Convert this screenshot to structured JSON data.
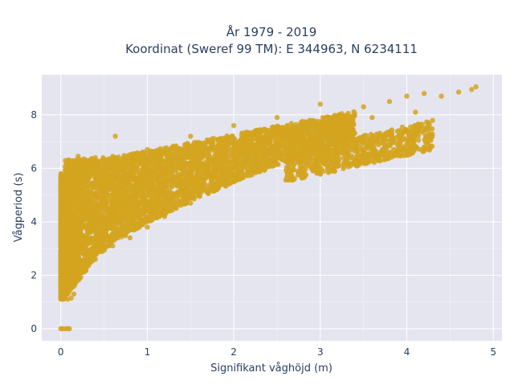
{
  "chart_data": {
    "type": "scatter",
    "title_line1": "År 1979 - 2019",
    "title_line2": "Koordinat (Sweref 99 TM): E 344963, N 6234111",
    "xlabel": "Signifikant våghöjd (m)",
    "ylabel": "Vågperiod (s)",
    "xlim": [
      -0.22,
      5.1
    ],
    "ylim": [
      -0.45,
      9.5
    ],
    "x_ticks": [
      0,
      1,
      2,
      3,
      4,
      5
    ],
    "x_tick_labels": [
      "0",
      "1",
      "2",
      "3",
      "4",
      "5"
    ],
    "y_ticks": [
      0,
      2,
      4,
      6,
      8
    ],
    "y_tick_labels": [
      "0",
      "2",
      "4",
      "6",
      "8"
    ],
    "grid": true,
    "marker_color": "#D4A520",
    "plot_background": "#E5E5F0",
    "series": [
      {
        "values_sample": [
          {
            "x": 0.0,
            "y": 0.0
          },
          {
            "x": 0.02,
            "y": 0.0
          },
          {
            "x": 0.05,
            "y": 0.0
          },
          {
            "x": 0.08,
            "y": 0.0
          },
          {
            "x": 0.1,
            "y": 0.0
          },
          {
            "x": 0.01,
            "y": 1.6
          },
          {
            "x": 0.02,
            "y": 1.4
          },
          {
            "x": 0.05,
            "y": 1.2
          },
          {
            "x": 0.08,
            "y": 1.1
          },
          {
            "x": 0.12,
            "y": 1.15
          },
          {
            "x": 0.15,
            "y": 1.3
          },
          {
            "x": 0.03,
            "y": 2.5
          },
          {
            "x": 0.04,
            "y": 3.5
          },
          {
            "x": 0.05,
            "y": 4.3
          },
          {
            "x": 0.06,
            "y": 5.3
          },
          {
            "x": 0.1,
            "y": 5.9
          },
          {
            "x": 0.2,
            "y": 6.45
          },
          {
            "x": 0.3,
            "y": 6.3
          },
          {
            "x": 0.4,
            "y": 6.4
          },
          {
            "x": 0.6,
            "y": 6.45
          },
          {
            "x": 0.63,
            "y": 7.2
          },
          {
            "x": 0.2,
            "y": 2.2
          },
          {
            "x": 0.4,
            "y": 2.6
          },
          {
            "x": 0.6,
            "y": 3.1
          },
          {
            "x": 0.8,
            "y": 3.4
          },
          {
            "x": 1.0,
            "y": 3.8
          },
          {
            "x": 1.2,
            "y": 4.2
          },
          {
            "x": 1.5,
            "y": 4.7
          },
          {
            "x": 1.8,
            "y": 5.2
          },
          {
            "x": 2.0,
            "y": 5.5
          },
          {
            "x": 2.3,
            "y": 5.9
          },
          {
            "x": 2.6,
            "y": 6.3
          },
          {
            "x": 3.0,
            "y": 6.8
          },
          {
            "x": 1.0,
            "y": 6.7
          },
          {
            "x": 1.5,
            "y": 7.2
          },
          {
            "x": 2.0,
            "y": 7.6
          },
          {
            "x": 2.5,
            "y": 7.9
          },
          {
            "x": 3.0,
            "y": 8.4
          },
          {
            "x": 3.5,
            "y": 8.3
          },
          {
            "x": 3.8,
            "y": 8.5
          },
          {
            "x": 4.0,
            "y": 8.7
          },
          {
            "x": 4.2,
            "y": 8.8
          },
          {
            "x": 4.4,
            "y": 8.7
          },
          {
            "x": 4.6,
            "y": 8.85
          },
          {
            "x": 4.8,
            "y": 9.05
          },
          {
            "x": 4.75,
            "y": 8.95
          },
          {
            "x": 3.2,
            "y": 7.5
          },
          {
            "x": 3.6,
            "y": 7.9
          },
          {
            "x": 4.1,
            "y": 8.1
          },
          {
            "x": 2.8,
            "y": 7.4
          }
        ]
      }
    ]
  }
}
